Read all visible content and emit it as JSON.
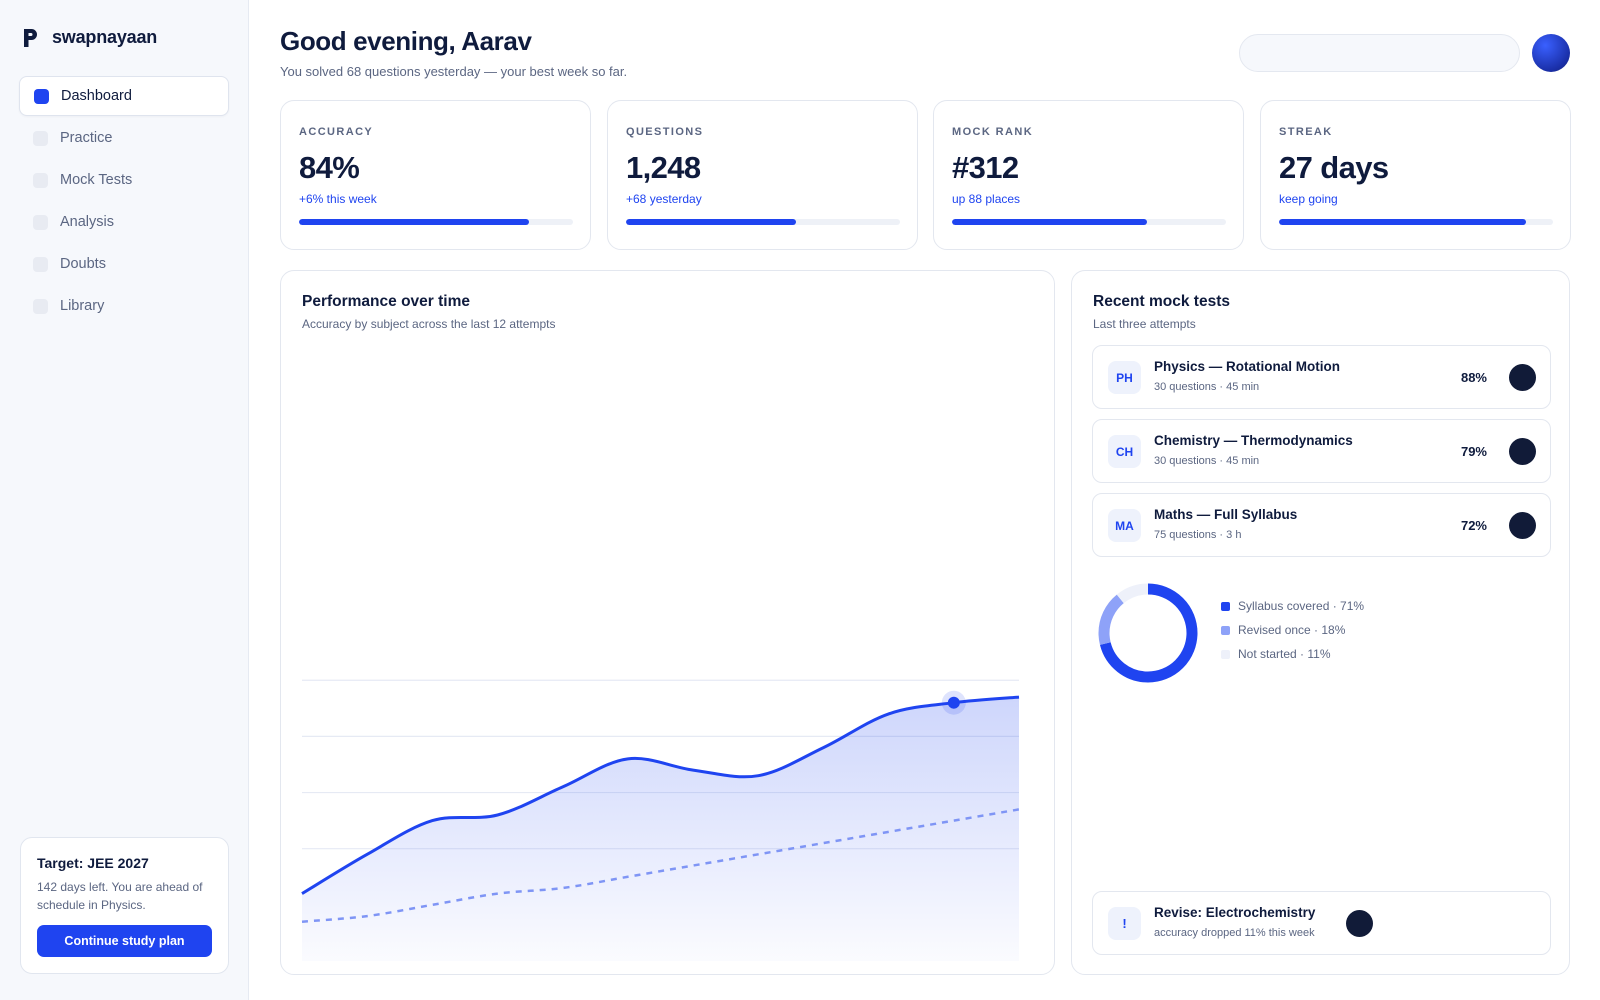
{
  "app": {
    "name": "swapnayaan"
  },
  "sidebar": {
    "items": [
      {
        "label": "Dashboard",
        "active": true
      },
      {
        "label": "Practice",
        "active": false
      },
      {
        "label": "Mock Tests",
        "active": false
      },
      {
        "label": "Analysis",
        "active": false
      },
      {
        "label": "Doubts",
        "active": false
      },
      {
        "label": "Library",
        "active": false
      }
    ],
    "target": {
      "title": "Target: JEE 2027",
      "text": "142 days left. You are ahead of schedule in Physics.",
      "button": "Continue study plan"
    }
  },
  "header": {
    "greeting": "Good evening, Aarav",
    "subtitle": "You solved 68 questions yesterday — your best week so far.",
    "search_value": ""
  },
  "kpis": [
    {
      "label": "ACCURACY",
      "value": "84%",
      "delta": "+6% this week",
      "progress": 0.84
    },
    {
      "label": "QUESTIONS",
      "value": "1,248",
      "delta": "+68 yesterday",
      "progress": 0.62
    },
    {
      "label": "MOCK RANK",
      "value": "#312",
      "delta": "up 88 places",
      "progress": 0.71
    },
    {
      "label": "STREAK",
      "value": "27 days",
      "delta": "keep going",
      "progress": 0.9
    }
  ],
  "performance": {
    "title": "Performance over time",
    "subtitle": "Accuracy by subject across the last 12 attempts"
  },
  "chart_data": {
    "type": "area",
    "title": "Performance over time",
    "subtitle": "Accuracy by subject across the last 12 attempts",
    "x": [
      1,
      2,
      3,
      4,
      5,
      6,
      7,
      8,
      9,
      10,
      11,
      12
    ],
    "series": [
      {
        "values": [
          47,
          54,
          60,
          61,
          66,
          71,
          69,
          68,
          73,
          79,
          81,
          82
        ]
      },
      {
        "values": [
          42,
          43,
          45,
          47,
          48,
          50,
          52,
          54,
          56,
          58,
          60,
          62
        ]
      }
    ],
    "highlight_index": 10,
    "ylim": [
      35,
      100
    ],
    "gridlines": [
      55,
      65,
      75,
      85
    ],
    "grid": true,
    "colors": {
      "primary": "#1f44f0",
      "secondary": "#7f95f5"
    }
  },
  "recent": {
    "title": "Recent mock tests",
    "subtitle": "Last three attempts",
    "tests": [
      {
        "badge": "PH",
        "title": "Physics — Rotational Motion",
        "meta": "30 questions · 45 min",
        "score": "88%"
      },
      {
        "badge": "CH",
        "title": "Chemistry — Thermodynamics",
        "meta": "30 questions · 45 min",
        "score": "79%"
      },
      {
        "badge": "MA",
        "title": "Maths — Full Syllabus",
        "meta": "75 questions · 3 h",
        "score": "72%"
      }
    ],
    "syllabus": [
      {
        "label": "Syllabus covered · 71%",
        "percent": 71,
        "color": "#1f44f0"
      },
      {
        "label": "Revised once · 18%",
        "percent": 18,
        "color": "#8ea2f8"
      },
      {
        "label": "Not started · 11%",
        "percent": 11,
        "color": "#eef1fa"
      }
    ],
    "alert": {
      "badge": "!",
      "title": "Revise: Electrochemistry",
      "meta": "accuracy dropped 11% this week"
    }
  },
  "colors": {
    "accent": "#1f44f0",
    "text": "#0f1b3d",
    "muted": "#5b6682"
  }
}
